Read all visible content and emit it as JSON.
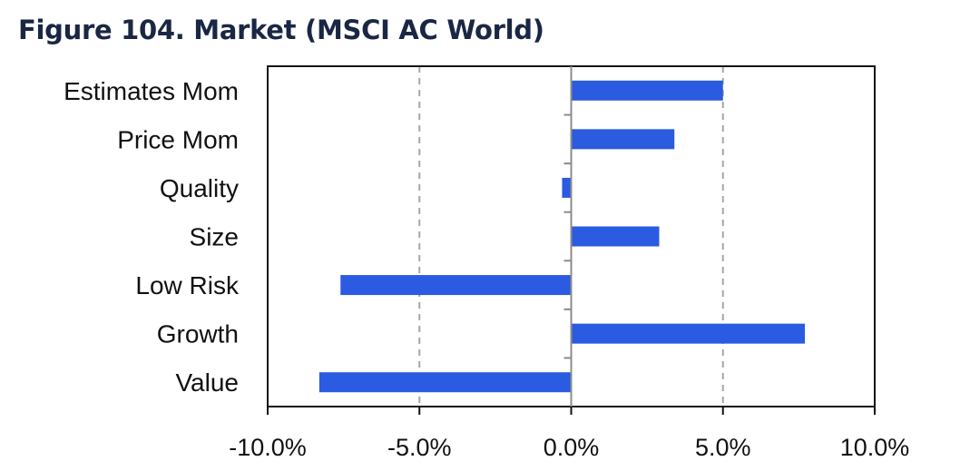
{
  "title": "Figure 104. Market (MSCI AC World)",
  "chart_data": {
    "type": "bar",
    "orientation": "horizontal",
    "categories": [
      "Estimates Mom",
      "Price Mom",
      "Quality",
      "Size",
      "Low Risk",
      "Growth",
      "Value"
    ],
    "values": [
      5.0,
      3.4,
      -0.3,
      2.9,
      -7.6,
      7.7,
      -8.3
    ],
    "value_unit": "%",
    "xlim": [
      -10.0,
      10.0
    ],
    "xticks": [
      -10.0,
      -5.0,
      0.0,
      5.0,
      10.0
    ],
    "xtick_labels": [
      "-10.0%",
      "-5.0%",
      "0.0%",
      "5.0%",
      "10.0%"
    ],
    "grid": "vertical dashed",
    "bar_color": "#2a5be0",
    "grid_color": "#a6a6a6",
    "title_color": "#1a2744",
    "xlabel": "",
    "ylabel": ""
  }
}
